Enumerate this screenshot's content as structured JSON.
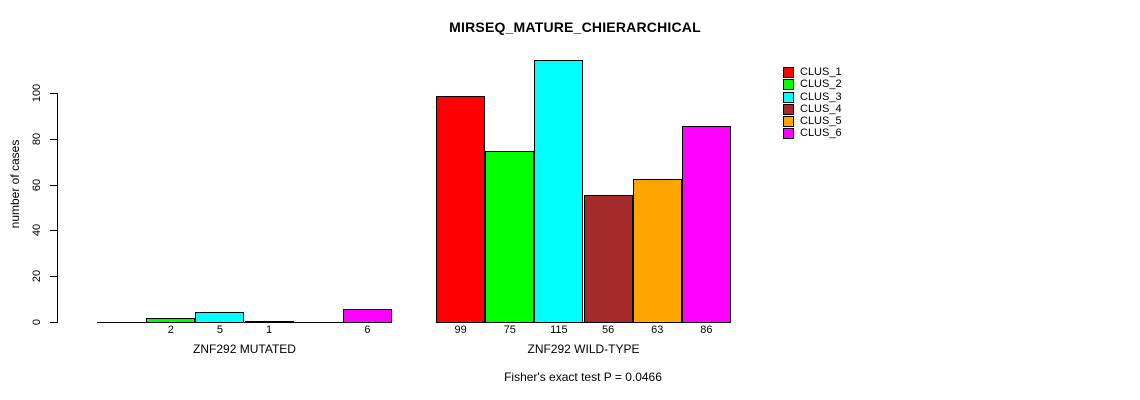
{
  "chart_data": {
    "type": "bar",
    "title": "MIRSEQ_MATURE_CHIERARCHICAL",
    "ylabel": "number of cases",
    "ylim": [
      0,
      115
    ],
    "yticks": [
      0,
      20,
      40,
      60,
      80,
      100
    ],
    "grid": false,
    "legend_position": "right",
    "series": [
      {
        "name": "CLUS_1",
        "color": "#FF0000"
      },
      {
        "name": "CLUS_2",
        "color": "#00FF00"
      },
      {
        "name": "CLUS_3",
        "color": "#00FFFF"
      },
      {
        "name": "CLUS_4",
        "color": "#A52A2A"
      },
      {
        "name": "CLUS_5",
        "color": "#FFA500"
      },
      {
        "name": "CLUS_6",
        "color": "#FF00FF"
      }
    ],
    "groups": [
      {
        "label": "ZNF292 MUTATED",
        "values": [
          0,
          2,
          5,
          1,
          0,
          6
        ],
        "bar_labels": [
          "",
          "2",
          "5",
          "1",
          "",
          "6"
        ]
      },
      {
        "label": "ZNF292 WILD-TYPE",
        "values": [
          99,
          75,
          115,
          56,
          63,
          86
        ],
        "bar_labels": [
          "99",
          "75",
          "115",
          "56",
          "63",
          "86"
        ]
      }
    ],
    "annotation": "Fisher's exact test P = 0.0466"
  }
}
